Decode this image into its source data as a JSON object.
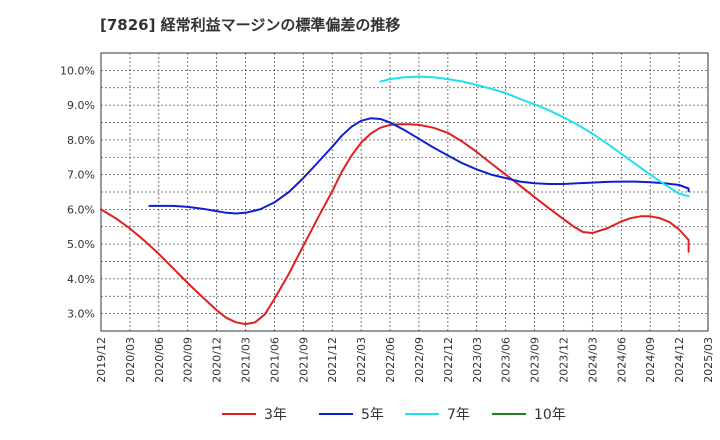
{
  "chart_data": {
    "type": "line",
    "title": "[7826]  経常利益マージンの標準偏差の推移",
    "x_tick_labels": [
      "2019/12",
      "2020/03",
      "2020/06",
      "2020/09",
      "2020/12",
      "2021/03",
      "2021/06",
      "2021/09",
      "2021/12",
      "2022/03",
      "2022/06",
      "2022/09",
      "2022/12",
      "2023/03",
      "2023/06",
      "2023/09",
      "2023/12",
      "2024/03",
      "2024/06",
      "2024/09",
      "2024/12",
      "2025/03"
    ],
    "y_tick_labels": [
      "3.0%",
      "4.0%",
      "5.0%",
      "6.0%",
      "7.0%",
      "8.0%",
      "9.0%",
      "10.0%"
    ],
    "y_ticks": [
      3.0,
      4.0,
      5.0,
      6.0,
      7.0,
      8.0,
      9.0,
      10.0
    ],
    "ylim": [
      2.5,
      10.5
    ],
    "x_count": 22,
    "grid": true,
    "legend_position": "bottom",
    "series": [
      {
        "name": "3年",
        "color": "#e02020",
        "x": [
          0,
          0.5,
          1,
          1.5,
          2,
          2.5,
          3,
          3.5,
          4,
          4.33,
          4.67,
          5,
          5.33,
          5.67,
          6,
          6.5,
          7,
          7.5,
          8,
          8.33,
          8.67,
          9,
          9.33,
          9.67,
          10,
          10.33,
          10.67,
          11,
          11.5,
          12,
          12.5,
          13,
          13.5,
          14,
          14.5,
          15,
          15.5,
          16,
          16.33,
          16.67,
          17,
          17.5,
          18,
          18.33,
          18.67,
          19,
          19.33,
          19.67,
          20,
          20.33
        ],
        "values": [
          6.0,
          5.75,
          5.45,
          5.1,
          4.72,
          4.3,
          3.88,
          3.48,
          3.1,
          2.88,
          2.75,
          2.7,
          2.75,
          2.98,
          3.42,
          4.15,
          4.95,
          5.75,
          6.52,
          7.08,
          7.55,
          7.92,
          8.18,
          8.35,
          8.43,
          8.45,
          8.45,
          8.43,
          8.35,
          8.2,
          7.95,
          7.65,
          7.32,
          7.0,
          6.68,
          6.35,
          6.03,
          5.72,
          5.52,
          5.35,
          5.32,
          5.45,
          5.65,
          5.75,
          5.8,
          5.8,
          5.75,
          5.63,
          5.42,
          5.12
        ],
        "x_end": 20.33,
        "value_end": 4.78
      },
      {
        "name": "5年",
        "color": "#1020d0",
        "x": [
          1.67,
          2,
          2.5,
          3,
          3.5,
          4,
          4.33,
          4.67,
          5,
          5.5,
          6,
          6.5,
          7,
          7.5,
          8,
          8.33,
          8.67,
          9,
          9.33,
          9.67,
          10,
          10.5,
          11,
          11.5,
          12,
          12.5,
          13,
          13.5,
          14,
          14.5,
          15,
          15.5,
          16,
          16.5,
          17,
          17.5,
          18,
          18.5,
          19,
          19.5,
          20,
          20.33
        ],
        "values": [
          6.1,
          6.1,
          6.1,
          6.07,
          6.02,
          5.95,
          5.9,
          5.88,
          5.9,
          6.0,
          6.2,
          6.5,
          6.9,
          7.35,
          7.8,
          8.12,
          8.38,
          8.55,
          8.62,
          8.6,
          8.5,
          8.28,
          8.03,
          7.78,
          7.55,
          7.33,
          7.15,
          7.0,
          6.9,
          6.8,
          6.75,
          6.73,
          6.73,
          6.75,
          6.77,
          6.79,
          6.8,
          6.8,
          6.78,
          6.75,
          6.7,
          6.6
        ],
        "x_end": 20.33,
        "value_end": 6.52
      },
      {
        "name": "7年",
        "color": "#20e0f0",
        "x": [
          9.67,
          10,
          10.5,
          11,
          11.5,
          12,
          12.5,
          13,
          13.5,
          14,
          14.5,
          15,
          15.5,
          16,
          16.5,
          17,
          17.5,
          18,
          18.5,
          19,
          19.5,
          20
        ],
        "values": [
          9.68,
          9.75,
          9.8,
          9.82,
          9.8,
          9.75,
          9.68,
          9.58,
          9.47,
          9.35,
          9.18,
          9.02,
          8.85,
          8.65,
          8.43,
          8.18,
          7.9,
          7.6,
          7.3,
          7.0,
          6.72,
          6.45
        ],
        "x_end": 20.33,
        "value_end": 6.38
      },
      {
        "name": "10年",
        "color": "#208020",
        "x": [],
        "values": []
      }
    ]
  }
}
